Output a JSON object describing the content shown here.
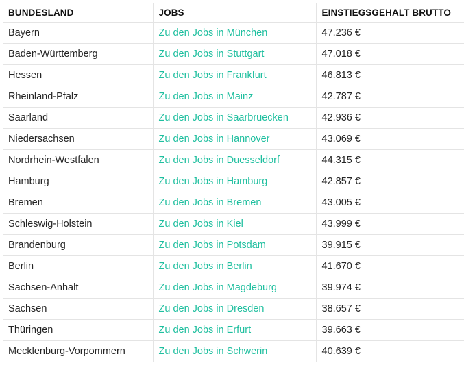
{
  "table": {
    "headers": [
      "BUNDESLAND",
      "JOBS",
      "EINSTIEGSGEHALT BRUTTO"
    ],
    "rows": [
      {
        "state": "Bayern",
        "jobs": "Zu den Jobs in München",
        "salary": "47.236 €"
      },
      {
        "state": "Baden-Württemberg",
        "jobs": "Zu den Jobs in Stuttgart",
        "salary": "47.018 €"
      },
      {
        "state": "Hessen",
        "jobs": "Zu den Jobs in Frankfurt",
        "salary": "46.813 €"
      },
      {
        "state": "Rheinland-Pfalz",
        "jobs": "Zu den Jobs in Mainz",
        "salary": "42.787 €"
      },
      {
        "state": "Saarland",
        "jobs": "Zu den Jobs in Saarbruecken",
        "salary": "42.936 €"
      },
      {
        "state": "Niedersachsen",
        "jobs": "Zu den Jobs in Hannover",
        "salary": "43.069 €"
      },
      {
        "state": "Nordrhein-Westfalen",
        "jobs": "Zu den Jobs in Duesseldorf",
        "salary": "44.315 €"
      },
      {
        "state": "Hamburg",
        "jobs": "Zu den Jobs in Hamburg",
        "salary": "42.857 €"
      },
      {
        "state": "Bremen",
        "jobs": "Zu den Jobs in Bremen",
        "salary": "43.005 €"
      },
      {
        "state": "Schleswig-Holstein",
        "jobs": "Zu den Jobs in Kiel",
        "salary": "43.999 €"
      },
      {
        "state": "Brandenburg",
        "jobs": "Zu den Jobs in Potsdam",
        "salary": "39.915 €"
      },
      {
        "state": "Berlin",
        "jobs": "Zu den Jobs in Berlin",
        "salary": "41.670 €"
      },
      {
        "state": "Sachsen-Anhalt",
        "jobs": "Zu den Jobs in Magdeburg",
        "salary": "39.974 €"
      },
      {
        "state": "Sachsen",
        "jobs": "Zu den Jobs in Dresden",
        "salary": "38.657 €"
      },
      {
        "state": "Thüringen",
        "jobs": "Zu den Jobs in Erfurt",
        "salary": "39.663 €"
      },
      {
        "state": "Mecklenburg-Vorpommern",
        "jobs": "Zu den Jobs in Schwerin",
        "salary": "40.639 €"
      }
    ]
  },
  "colors": {
    "link": "#1fbf9f",
    "border": "#e4e4e4",
    "text": "#262626"
  }
}
